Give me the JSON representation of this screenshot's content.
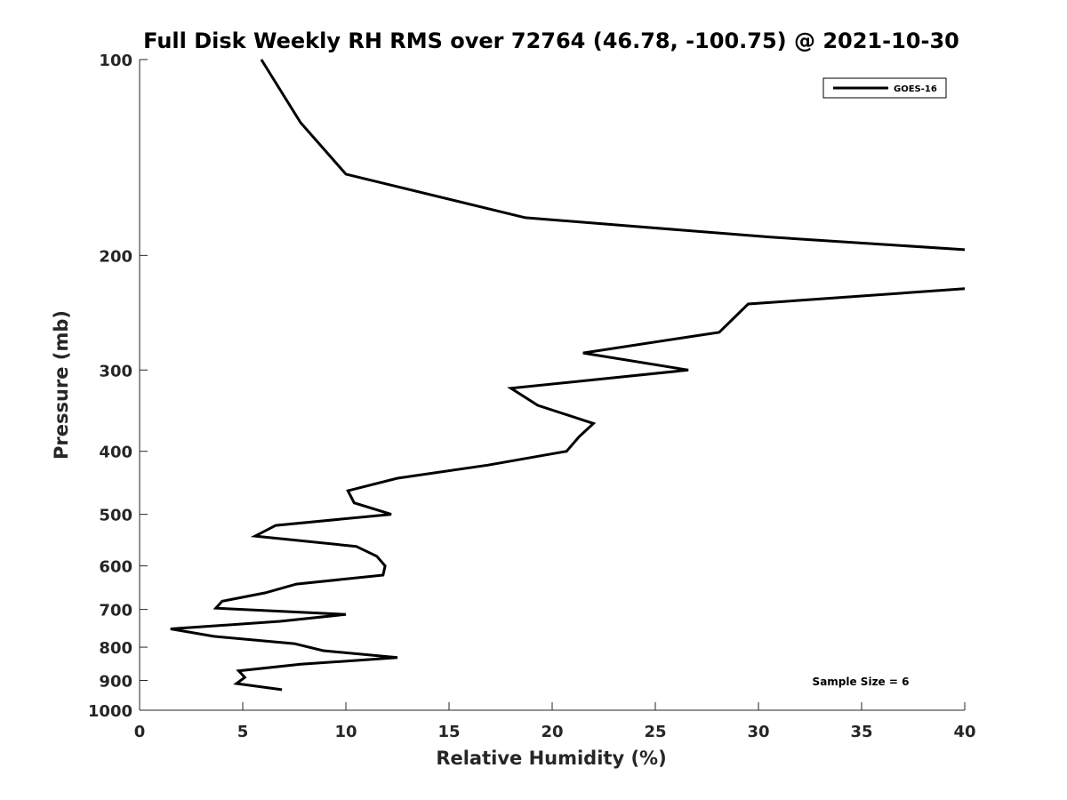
{
  "chart_data": {
    "type": "line",
    "title": "Full Disk Weekly RH RMS over 72764 (46.78, -100.75) @ 2021-10-30",
    "xlabel": "Relative Humidity (%)",
    "ylabel": "Pressure (mb)",
    "xlim": [
      0,
      40
    ],
    "ylim": [
      100,
      1000
    ],
    "y_scale": "log",
    "y_reversed": true,
    "x_ticks": [
      "0",
      "5",
      "10",
      "15",
      "20",
      "25",
      "30",
      "35",
      "40"
    ],
    "y_ticks": [
      "100",
      "200",
      "300",
      "400",
      "500",
      "600",
      "700",
      "800",
      "900",
      "1000"
    ],
    "grid": false,
    "legend_position": "top-right",
    "annotation": "Sample Size = 6",
    "series": [
      {
        "name": "GOES-16",
        "color": "#000000",
        "segments": [
          [
            [
              5.9,
              100
            ],
            [
              7.8,
              125
            ],
            [
              10.0,
              150
            ],
            [
              18.7,
              175
            ],
            [
              30.6,
              187.5
            ],
            [
              40.0,
              196
            ]
          ],
          [
            [
              40.0,
              225
            ],
            [
              29.5,
              237.5
            ],
            [
              28.1,
              262.5
            ],
            [
              21.5,
              282.5
            ],
            [
              26.6,
              300
            ],
            [
              18.0,
              320
            ],
            [
              19.3,
              340
            ],
            [
              22.0,
              362.5
            ],
            [
              21.3,
              380
            ],
            [
              20.7,
              400
            ],
            [
              16.9,
              420
            ],
            [
              12.5,
              440
            ],
            [
              10.1,
              460
            ],
            [
              10.4,
              480
            ],
            [
              12.2,
              500
            ],
            [
              6.6,
              520
            ],
            [
              5.6,
              540
            ],
            [
              10.5,
              560
            ],
            [
              11.5,
              580
            ],
            [
              11.9,
              600
            ],
            [
              11.8,
              620
            ],
            [
              7.6,
              640
            ],
            [
              6.1,
              660
            ],
            [
              4.0,
              680
            ],
            [
              3.7,
              697
            ],
            [
              10.0,
              712.5
            ],
            [
              6.8,
              730
            ],
            [
              1.5,
              750
            ],
            [
              3.6,
              770
            ],
            [
              7.5,
              790
            ],
            [
              8.9,
              810
            ],
            [
              12.5,
              830
            ],
            [
              7.8,
              850
            ],
            [
              4.8,
              870
            ],
            [
              5.1,
              890
            ],
            [
              4.7,
              910
            ],
            [
              6.9,
              930
            ]
          ]
        ]
      }
    ]
  }
}
